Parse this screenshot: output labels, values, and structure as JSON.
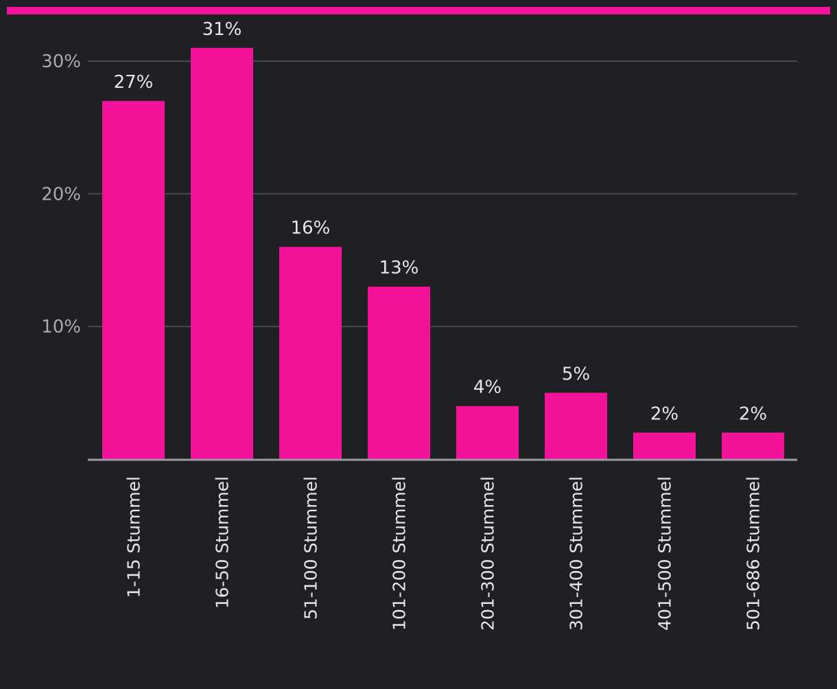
{
  "colors": {
    "background": "#1f2023",
    "accent": "#f5129a",
    "grid": "#4a4b4f",
    "axis": "#9a9ca1"
  },
  "chart_data": {
    "type": "bar",
    "title": "",
    "xlabel": "",
    "ylabel": "",
    "categories": [
      "1-15 Stummel",
      "16-50 Stummel",
      "51-100 Stummel",
      "101-200 Stummel",
      "201-300 Stummel",
      "301-400 Stummel",
      "401-500 Stummel",
      "501-686 Stummel"
    ],
    "values": [
      27,
      31,
      16,
      13,
      4,
      5,
      2,
      2
    ],
    "value_labels": [
      "27%",
      "31%",
      "16%",
      "13%",
      "4%",
      "5%",
      "2%",
      "2%"
    ],
    "y_ticks": [
      10,
      20,
      30
    ],
    "y_tick_labels": [
      "10%",
      "20%",
      "30%"
    ],
    "ylim": [
      0,
      31
    ],
    "grid": true,
    "legend": "none"
  }
}
